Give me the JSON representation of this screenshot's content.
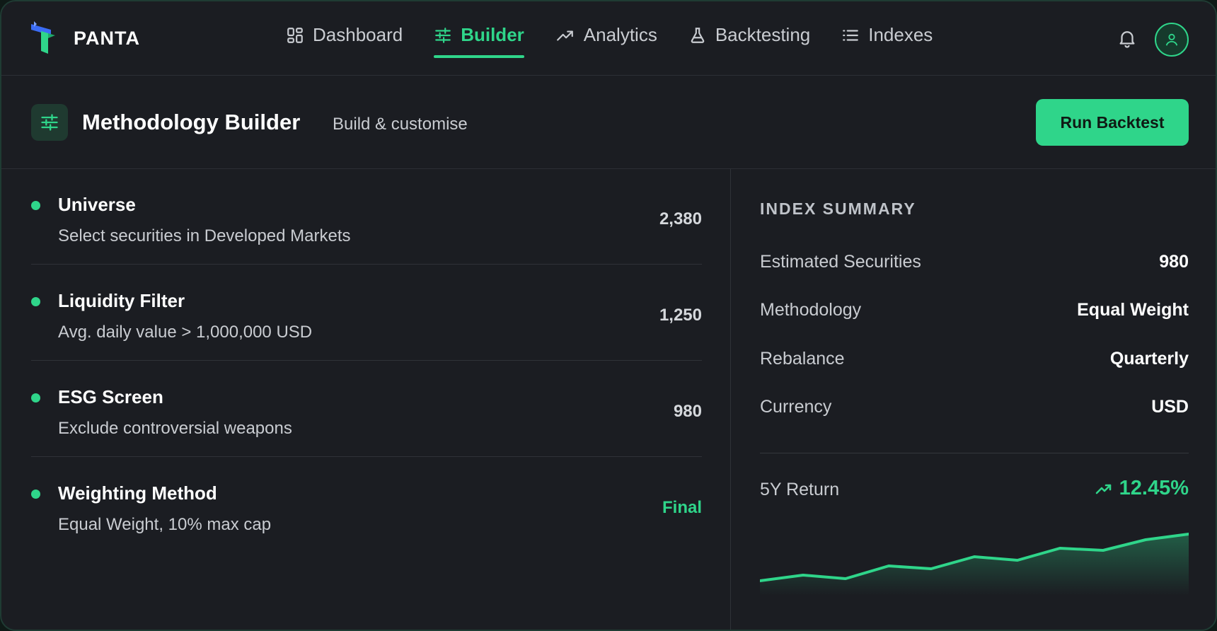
{
  "brand": {
    "name": "PANTA"
  },
  "nav": {
    "items": [
      {
        "label": "Dashboard",
        "icon": "grid-icon",
        "active": false
      },
      {
        "label": "Builder",
        "icon": "sliders-icon",
        "active": true
      },
      {
        "label": "Analytics",
        "icon": "trend-up-icon",
        "active": false
      },
      {
        "label": "Backtesting",
        "icon": "flask-icon",
        "active": false
      },
      {
        "label": "Indexes",
        "icon": "list-icon",
        "active": false
      }
    ]
  },
  "header": {
    "title": "Methodology Builder",
    "subtitle": "Build & customise",
    "run_button": "Run Backtest"
  },
  "steps": [
    {
      "title": "Universe",
      "description": "Select securities in Developed Markets",
      "value": "2,380"
    },
    {
      "title": "Liquidity Filter",
      "description": "Avg. daily value > 1,000,000 USD",
      "value": "1,250"
    },
    {
      "title": "ESG Screen",
      "description": "Exclude controversial weapons",
      "value": "980"
    },
    {
      "title": "Weighting Method",
      "description": "Equal Weight, 10% max cap",
      "value": "Final"
    }
  ],
  "summary": {
    "heading": "INDEX SUMMARY",
    "rows": [
      {
        "label": "Estimated Securities",
        "value": "980"
      },
      {
        "label": "Methodology",
        "value": "Equal Weight"
      },
      {
        "label": "Rebalance",
        "value": "Quarterly"
      },
      {
        "label": "Currency",
        "value": "USD"
      }
    ],
    "return_label": "5Y Return",
    "return_value": "12.45%",
    "sparkline": [
      0.1,
      0.2,
      0.14,
      0.38,
      0.32,
      0.55,
      0.48,
      0.72,
      0.68,
      0.88,
      0.98
    ]
  },
  "colors": {
    "accent": "#2fd58a",
    "background": "#1b1d22",
    "frame_border": "#1f3b33"
  }
}
